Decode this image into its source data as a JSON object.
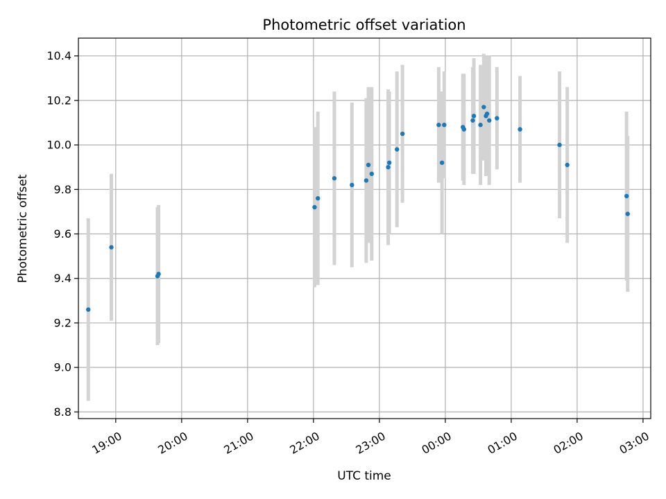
{
  "chart_data": {
    "type": "scatter",
    "title": "Photometric offset variation",
    "xlabel": "UTC time",
    "ylabel": "Photometric offset",
    "grid": true,
    "xlim": [
      "18:26",
      "03:07"
    ],
    "ylim": [
      8.77,
      10.48
    ],
    "x_tick_labels": [
      "19:00",
      "20:00",
      "21:00",
      "22:00",
      "23:00",
      "00:00",
      "01:00",
      "02:00",
      "03:00"
    ],
    "x_ticks": [
      "19:00",
      "20:00",
      "21:00",
      "22:00",
      "23:00",
      "00:00",
      "01:00",
      "02:00",
      "03:00"
    ],
    "y_ticks": [
      8.8,
      9.0,
      9.2,
      9.4,
      9.6,
      9.8,
      10.0,
      10.2,
      10.4
    ],
    "y_tick_labels": [
      "8.8",
      "9.0",
      "9.2",
      "9.4",
      "9.6",
      "9.8",
      "10.0",
      "10.2",
      "10.4"
    ],
    "colors": {
      "point": "#1f77b4",
      "errorbar": "#d3d3d3",
      "grid": "#b0b0b0"
    },
    "points": [
      {
        "t": "18:35",
        "y": 9.26,
        "err": 0.41
      },
      {
        "t": "18:56",
        "y": 9.54,
        "err": 0.33
      },
      {
        "t": "19:38",
        "y": 9.41,
        "err": 0.31
      },
      {
        "t": "19:39",
        "y": 9.42,
        "err": 0.31
      },
      {
        "t": "22:01",
        "y": 9.72,
        "err": 0.36
      },
      {
        "t": "22:04",
        "y": 9.76,
        "err": 0.39
      },
      {
        "t": "22:19",
        "y": 9.85,
        "err": 0.39
      },
      {
        "t": "22:35",
        "y": 9.82,
        "err": 0.37
      },
      {
        "t": "22:48",
        "y": 9.84,
        "err": 0.37
      },
      {
        "t": "22:50",
        "y": 9.91,
        "err": 0.35
      },
      {
        "t": "22:53",
        "y": 9.87,
        "err": 0.39
      },
      {
        "t": "23:08",
        "y": 9.9,
        "err": 0.35
      },
      {
        "t": "23:09",
        "y": 9.92,
        "err": 0.32
      },
      {
        "t": "23:16",
        "y": 9.98,
        "err": 0.35
      },
      {
        "t": "23:21",
        "y": 10.05,
        "err": 0.31
      },
      {
        "t": "23:54",
        "y": 10.09,
        "err": 0.26
      },
      {
        "t": "23:57",
        "y": 9.92,
        "err": 0.32
      },
      {
        "t": "23:59",
        "y": 10.09,
        "err": 0.24
      },
      {
        "t": "00:16",
        "y": 10.08,
        "err": 0.24
      },
      {
        "t": "00:17",
        "y": 10.07,
        "err": 0.25
      },
      {
        "t": "00:25",
        "y": 10.11,
        "err": 0.24
      },
      {
        "t": "00:26",
        "y": 10.13,
        "err": 0.26
      },
      {
        "t": "00:32",
        "y": 10.09,
        "err": 0.27
      },
      {
        "t": "00:35",
        "y": 10.17,
        "err": 0.24
      },
      {
        "t": "00:37",
        "y": 10.13,
        "err": 0.27
      },
      {
        "t": "00:38",
        "y": 10.14,
        "err": 0.26
      },
      {
        "t": "00:40",
        "y": 10.11,
        "err": 0.29
      },
      {
        "t": "00:47",
        "y": 10.12,
        "err": 0.23
      },
      {
        "t": "01:08",
        "y": 10.07,
        "err": 0.24
      },
      {
        "t": "01:44",
        "y": 10.0,
        "err": 0.33
      },
      {
        "t": "01:51",
        "y": 9.91,
        "err": 0.35
      },
      {
        "t": "02:45",
        "y": 9.77,
        "err": 0.38
      },
      {
        "t": "02:46",
        "y": 9.69,
        "err": 0.35
      }
    ]
  }
}
